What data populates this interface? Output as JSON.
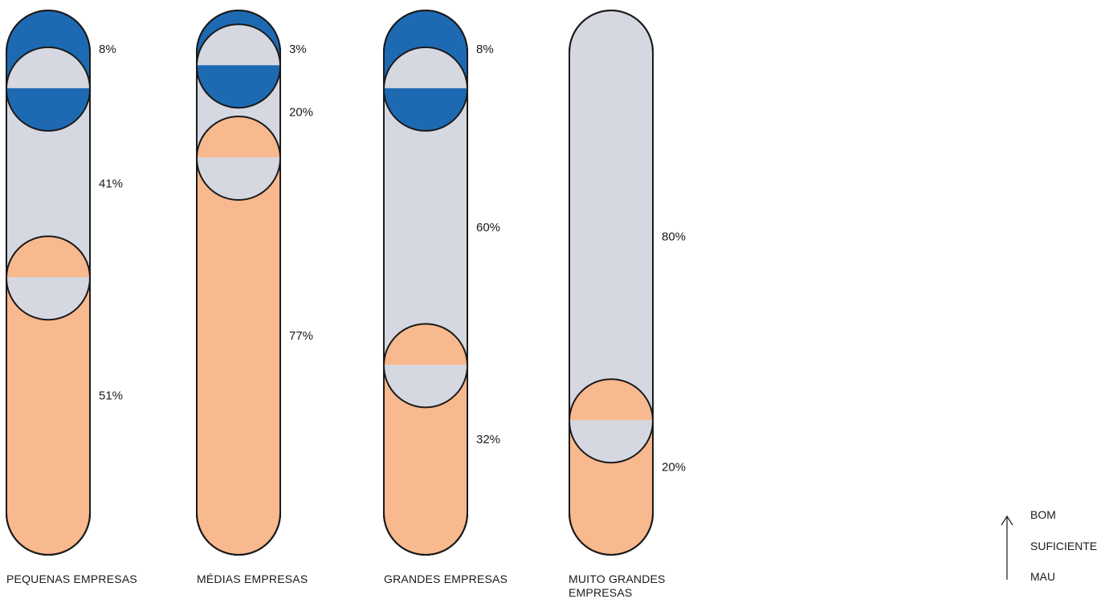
{
  "chart_data": {
    "type": "bar",
    "stacked": true,
    "categories": [
      "PEQUENAS EMPRESAS",
      "MÉDIAS EMPRESAS",
      "GRANDES EMPRESAS",
      "MUITO GRANDES EMPRESAS"
    ],
    "series": [
      {
        "name": "BOM",
        "color": "#1d6ab3",
        "values": [
          8,
          3,
          8,
          0
        ],
        "labels": [
          "8%",
          "3%",
          "8%",
          ""
        ]
      },
      {
        "name": "SUFICIENTE",
        "color": "#d5d7e1",
        "values": [
          41,
          20,
          60,
          80
        ],
        "labels": [
          "41%",
          "20%",
          "60%",
          "80%"
        ]
      },
      {
        "name": "MAU",
        "color": "#f8b98f",
        "values": [
          51,
          77,
          32,
          20
        ],
        "labels": [
          "51%",
          "77%",
          "32%",
          "20%"
        ]
      }
    ],
    "ylim": [
      0,
      100
    ],
    "legend": {
      "placement": "bottom-right",
      "arrow": "up-arrow-icon",
      "entries": [
        "BOM",
        "SUFICIENTE",
        "MAU"
      ]
    }
  }
}
